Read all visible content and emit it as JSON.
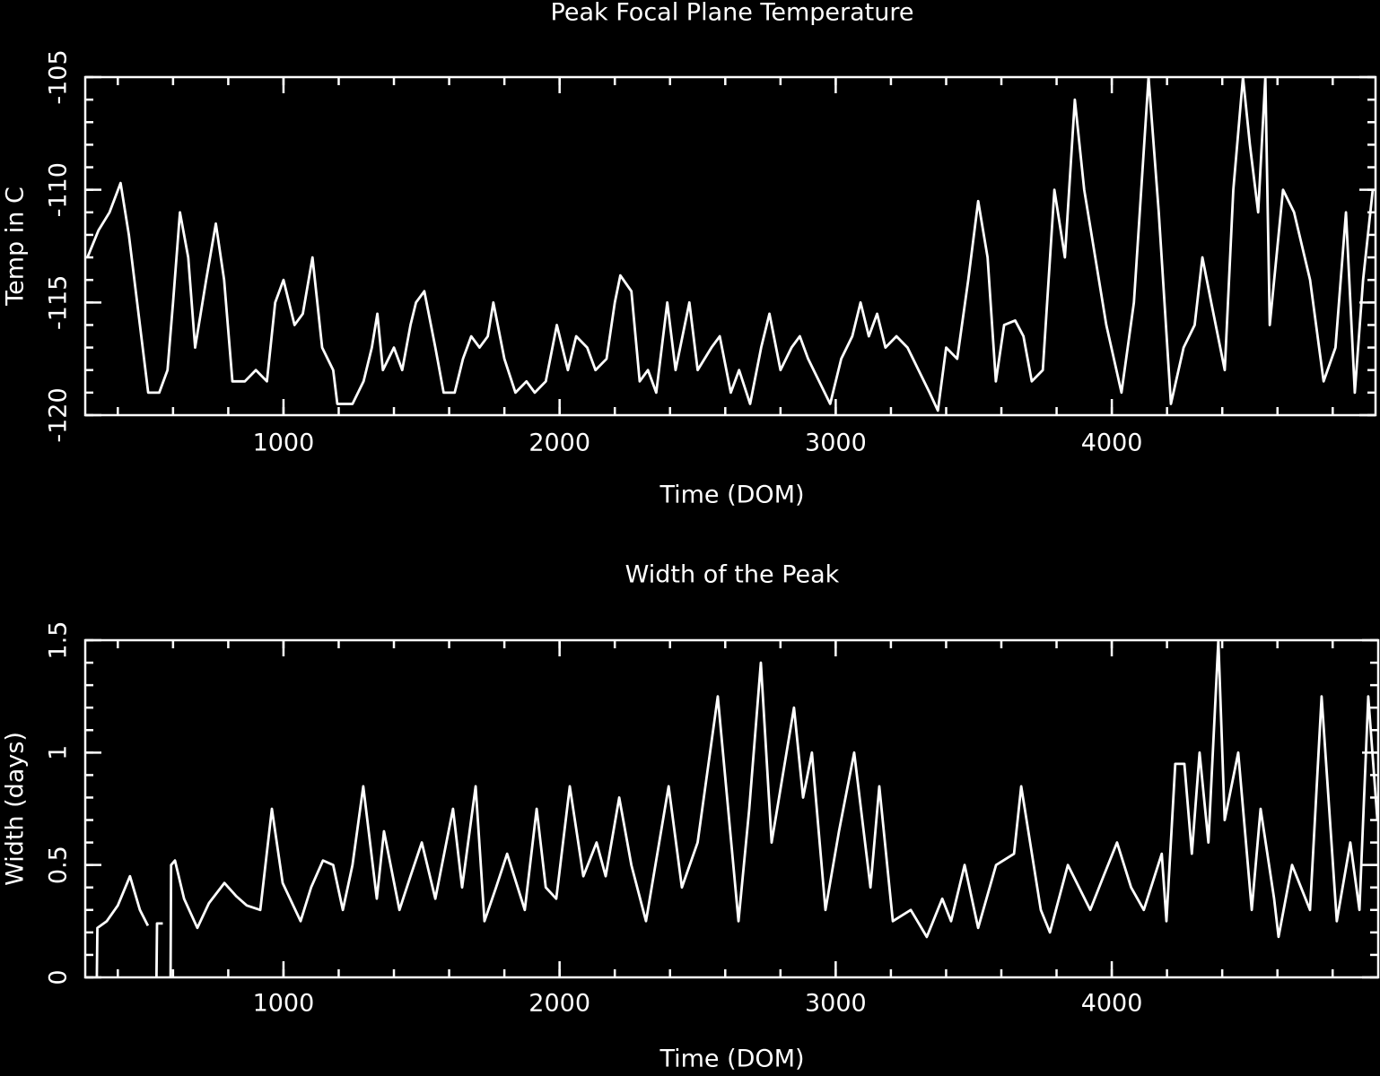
{
  "chart_data": [
    {
      "type": "line",
      "title": "Peak Focal Plane Temperature",
      "xlabel": "Time (DOM)",
      "ylabel": "Temp in C",
      "color": "#ffffff",
      "xlim": [
        282,
        4955
      ],
      "ylim": [
        -120,
        -105
      ],
      "xticks": [
        1000,
        2000,
        3000,
        4000
      ],
      "yticks": [
        -120,
        -115,
        -110,
        -105
      ],
      "x": [
        290,
        330,
        370,
        410,
        440,
        480,
        510,
        550,
        580,
        600,
        625,
        655,
        680,
        720,
        755,
        785,
        815,
        860,
        900,
        940,
        970,
        1000,
        1040,
        1070,
        1105,
        1140,
        1180,
        1195,
        1250,
        1290,
        1320,
        1340,
        1360,
        1400,
        1430,
        1460,
        1480,
        1510,
        1550,
        1580,
        1620,
        1650,
        1680,
        1710,
        1740,
        1760,
        1800,
        1840,
        1880,
        1910,
        1950,
        1990,
        2030,
        2060,
        2100,
        2130,
        2170,
        2200,
        2220,
        2260,
        2290,
        2320,
        2350,
        2390,
        2420,
        2470,
        2500,
        2550,
        2580,
        2620,
        2650,
        2690,
        2730,
        2760,
        2800,
        2840,
        2870,
        2900,
        2940,
        2980,
        3020,
        3060,
        3090,
        3120,
        3150,
        3180,
        3220,
        3260,
        3300,
        3340,
        3370,
        3400,
        3440,
        3480,
        3516,
        3550,
        3580,
        3610,
        3650,
        3680,
        3710,
        3750,
        3792,
        3830,
        3866,
        3900,
        3940,
        3980,
        4035,
        4080,
        4133,
        4170,
        4214,
        4260,
        4300,
        4328,
        4360,
        4409,
        4440,
        4475,
        4500,
        4530,
        4556,
        4572,
        4620,
        4660,
        4718,
        4767,
        4810,
        4848,
        4880,
        4910,
        4945
      ],
      "values": [
        -113,
        -111.8,
        -111,
        -109.7,
        -112,
        -116,
        -119,
        -119,
        -118,
        -115,
        -111,
        -113,
        -117,
        -114,
        -111.5,
        -114,
        -118.5,
        -118.5,
        -118,
        -118.5,
        -115,
        -114,
        -116,
        -115.5,
        -113,
        -117,
        -118,
        -119.5,
        -119.5,
        -118.5,
        -117,
        -115.5,
        -118,
        -117,
        -118,
        -116,
        -115,
        -114.5,
        -117,
        -119,
        -119,
        -117.5,
        -116.5,
        -117,
        -116.5,
        -115,
        -117.5,
        -119,
        -118.5,
        -119,
        -118.5,
        -116,
        -118,
        -116.5,
        -117,
        -118,
        -117.5,
        -115,
        -113.8,
        -114.5,
        -118.5,
        -118,
        -119,
        -115,
        -118,
        -115,
        -118,
        -117,
        -116.5,
        -119,
        -118,
        -119.5,
        -117,
        -115.5,
        -118,
        -117,
        -116.5,
        -117.5,
        -118.5,
        -119.5,
        -117.5,
        -116.5,
        -115,
        -116.5,
        -115.5,
        -117,
        -116.5,
        -117,
        -118,
        -119,
        -119.8,
        -117,
        -117.5,
        -114,
        -110.5,
        -113,
        -118.5,
        -116,
        -115.8,
        -116.5,
        -118.5,
        -118,
        -110,
        -113,
        -106,
        -110,
        -113,
        -116,
        -119,
        -115,
        -105,
        -111,
        -119.5,
        -117,
        -116,
        -113,
        -115,
        -118,
        -110,
        -105,
        -108,
        -111,
        -105,
        -116,
        -110,
        -111,
        -114,
        -118.5,
        -117,
        -111,
        -119,
        -114,
        -110
      ]
    },
    {
      "type": "line",
      "title": "Width of the Peak",
      "xlabel": "Time (DOM)",
      "ylabel": "Width (days)",
      "color": "#ffffff",
      "xlim": [
        282,
        4965
      ],
      "ylim": [
        0,
        1.5
      ],
      "xticks": [
        1000,
        2000,
        3000,
        4000
      ],
      "yticks": [
        0,
        0.5,
        1,
        1.5
      ],
      "x": [
        324,
        326,
        360,
        400,
        444,
        480,
        509,
        520,
        540,
        542,
        563,
        575,
        591,
        593,
        607,
        640,
        688,
        730,
        786,
        830,
        867,
        916,
        958,
        997,
        1062,
        1100,
        1143,
        1180,
        1215,
        1250,
        1289,
        1338,
        1364,
        1420,
        1460,
        1501,
        1550,
        1614,
        1647,
        1696,
        1728,
        1770,
        1810,
        1874,
        1917,
        1950,
        1988,
        2037,
        2086,
        2134,
        2167,
        2216,
        2260,
        2313,
        2395,
        2443,
        2500,
        2573,
        2648,
        2687,
        2729,
        2768,
        2849,
        2882,
        2914,
        2963,
        3012,
        3067,
        3126,
        3158,
        3207,
        3272,
        3330,
        3386,
        3418,
        3467,
        3516,
        3581,
        3646,
        3672,
        3743,
        3776,
        3841,
        3922,
        3970,
        4019,
        4070,
        4116,
        4181,
        4198,
        4230,
        4263,
        4290,
        4318,
        4350,
        4386,
        4409,
        4458,
        4507,
        4539,
        4588,
        4604,
        4653,
        4718,
        4760,
        4815,
        4864,
        4897,
        4929,
        4962
      ],
      "values": [
        0,
        0.22,
        0.25,
        0.32,
        0.45,
        0.3,
        0.23,
        null,
        0,
        0.24,
        0.24,
        null,
        0,
        0.5,
        0.52,
        0.35,
        0.22,
        0.33,
        0.42,
        0.36,
        0.32,
        0.3,
        0.75,
        0.42,
        0.25,
        0.4,
        0.52,
        0.5,
        0.3,
        0.5,
        0.85,
        0.35,
        0.65,
        0.3,
        0.45,
        0.6,
        0.35,
        0.75,
        0.4,
        0.85,
        0.25,
        0.4,
        0.55,
        0.3,
        0.75,
        0.4,
        0.35,
        0.85,
        0.45,
        0.6,
        0.45,
        0.8,
        0.5,
        0.25,
        0.85,
        0.4,
        0.6,
        1.25,
        0.25,
        0.75,
        1.4,
        0.6,
        1.2,
        0.8,
        1.0,
        0.3,
        0.65,
        1.0,
        0.4,
        0.85,
        0.25,
        0.3,
        0.18,
        0.35,
        0.25,
        0.5,
        0.22,
        0.5,
        0.55,
        0.85,
        0.3,
        0.2,
        0.5,
        0.3,
        0.45,
        0.6,
        0.4,
        0.3,
        0.55,
        0.25,
        0.95,
        0.95,
        0.55,
        1.0,
        0.6,
        1.5,
        0.7,
        1.0,
        0.3,
        0.75,
        0.35,
        0.18,
        0.5,
        0.3,
        1.25,
        0.25,
        0.6,
        0.3,
        1.25,
        0.7
      ]
    }
  ]
}
